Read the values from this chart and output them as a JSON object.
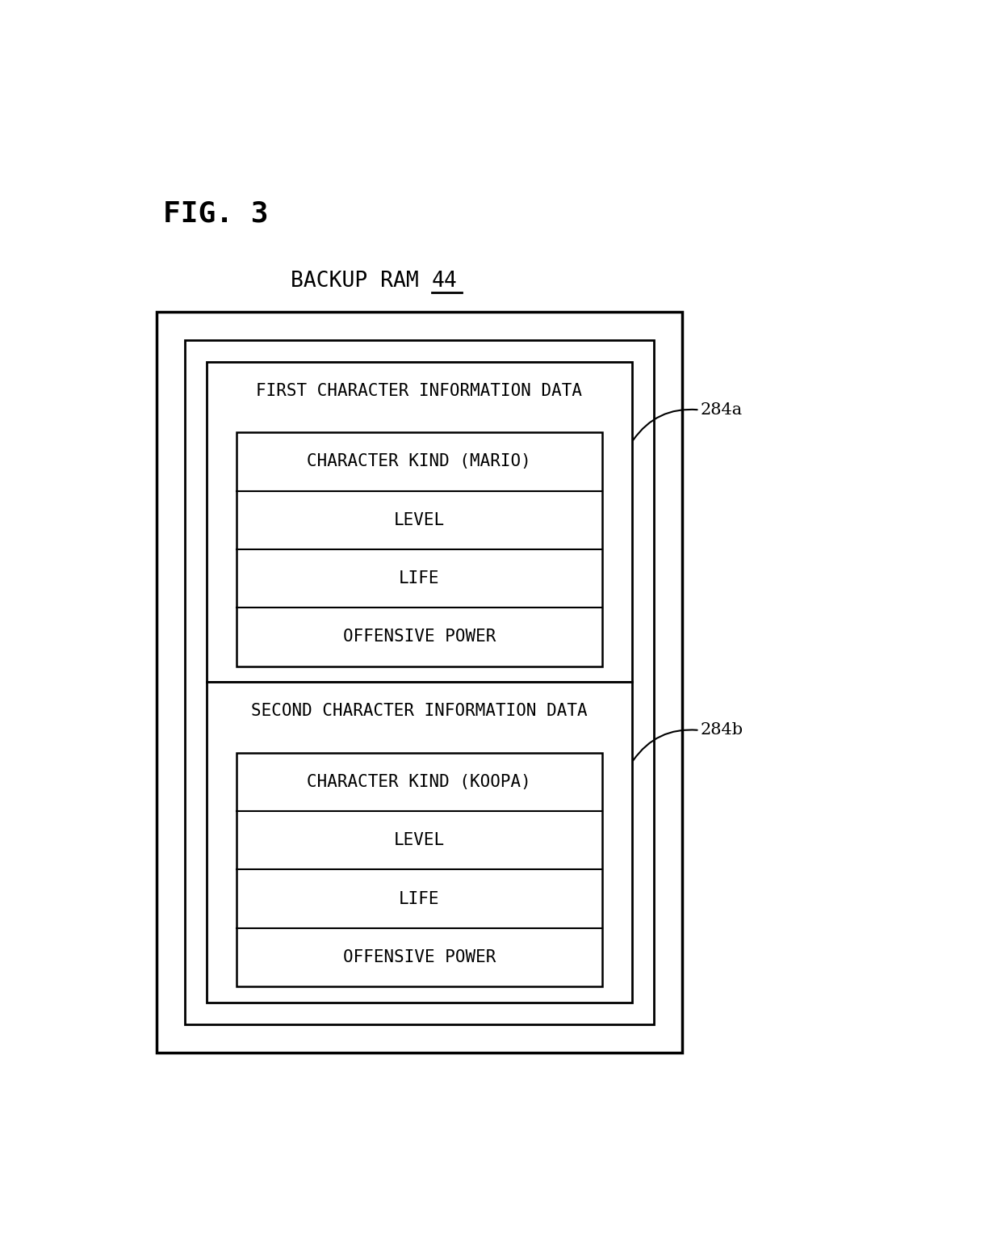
{
  "fig_label": "FIG. 3",
  "backup_ram_text": "BACKUP RAM ",
  "backup_ram_num": "44",
  "label_284a": "284a",
  "label_284b": "284b",
  "first_block_title": "FIRST CHARACTER INFORMATION DATA",
  "second_block_title": "SECOND CHARACTER INFORMATION DATA",
  "first_items": [
    "CHARACTER KIND (MARIO)",
    "LEVEL",
    "LIFE",
    "OFFENSIVE POWER"
  ],
  "second_items": [
    "CHARACTER KIND (KOOPA)",
    "LEVEL",
    "LIFE",
    "OFFENSIVE POWER"
  ],
  "bg_color": "#ffffff",
  "box_color": "#000000",
  "text_color": "#000000",
  "fig_label_fontsize": 26,
  "title_fontsize": 19,
  "block_title_fontsize": 15,
  "item_fontsize": 15,
  "label_fontsize": 15
}
